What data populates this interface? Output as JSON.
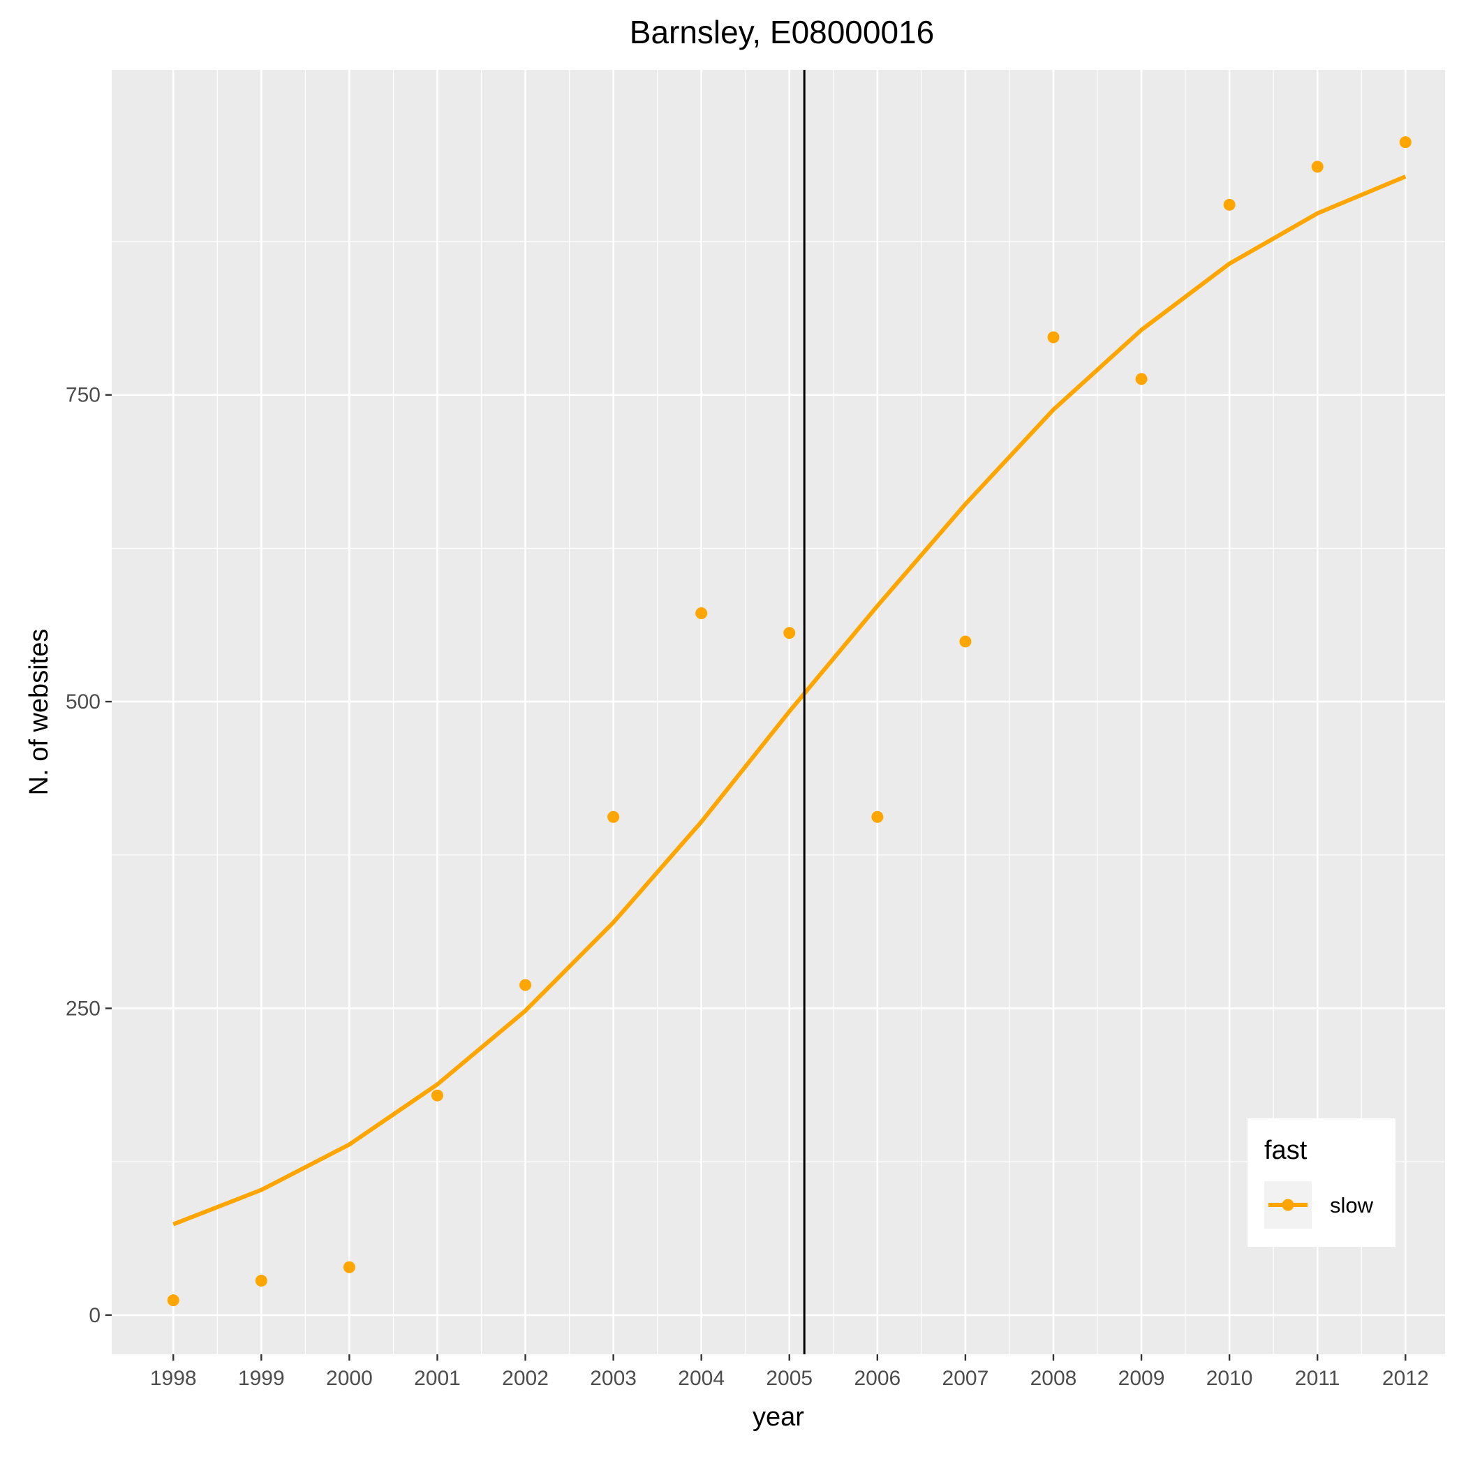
{
  "chart_data": {
    "type": "scatter",
    "title": "Barnsley, E08000016",
    "xlabel": "year",
    "ylabel": "N. of websites",
    "x": [
      1998,
      1999,
      2000,
      2001,
      2002,
      2003,
      2004,
      2005,
      2006,
      2007,
      2008,
      2009,
      2010,
      2011,
      2012
    ],
    "x_tick_labels": [
      "1998",
      "1999",
      "2000",
      "2001",
      "2002",
      "2003",
      "2004",
      "2005",
      "2006",
      "2007",
      "2008",
      "2009",
      "2010",
      "2011",
      "2012"
    ],
    "y_ticks": [
      0,
      250,
      500,
      750
    ],
    "y_tick_labels": [
      "0",
      "250",
      "500",
      "750"
    ],
    "xlim": [
      1997.3,
      2012.45
    ],
    "ylim": [
      -32,
      1015
    ],
    "grid": true,
    "series": [
      {
        "name": "slow",
        "color": "#FFA500",
        "points": [
          12,
          28,
          39,
          179,
          269,
          406,
          572,
          556,
          406,
          549,
          797,
          763,
          905,
          936,
          956
        ],
        "smooth": [
          74,
          102,
          139,
          188,
          248,
          320,
          402,
          492,
          578,
          661,
          738,
          803,
          857,
          898,
          928
        ]
      }
    ],
    "vline": {
      "x": 2005.17,
      "color": "#000000"
    },
    "legend": {
      "title": "fast",
      "position": "bottom-right",
      "entries": [
        "slow"
      ]
    }
  }
}
